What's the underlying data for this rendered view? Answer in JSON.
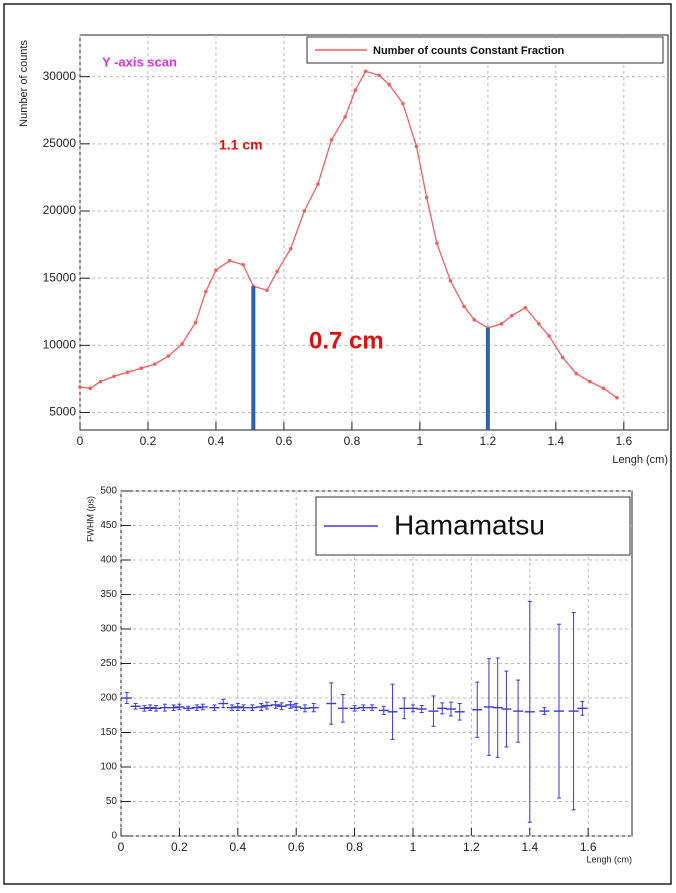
{
  "chart_data": [
    {
      "type": "line",
      "legend": "Number of counts Constant Fraction",
      "ylabel": "Number of counts",
      "xlabel": "Lengh (cm)",
      "annotations": [
        "Y -axis scan",
        "1.1 cm",
        "0.7 cm"
      ],
      "vlines": [
        0.51,
        1.2
      ],
      "vline_color": "#2e62a8",
      "xlim": [
        0,
        1.73
      ],
      "ylim": [
        3700,
        33100
      ],
      "xticks": [
        0,
        0.2,
        0.4,
        0.6,
        0.8,
        1,
        1.2,
        1.4,
        1.6
      ],
      "yticks": [
        5000,
        10000,
        15000,
        20000,
        25000,
        30000
      ],
      "grid": true,
      "series": [
        {
          "name": "Number of counts Constant Fraction",
          "color": "#f06060",
          "x": [
            0,
            0.03,
            0.06,
            0.1,
            0.14,
            0.18,
            0.22,
            0.26,
            0.3,
            0.34,
            0.37,
            0.4,
            0.44,
            0.48,
            0.51,
            0.55,
            0.58,
            0.62,
            0.66,
            0.7,
            0.74,
            0.78,
            0.81,
            0.84,
            0.88,
            0.91,
            0.95,
            0.99,
            1.02,
            1.05,
            1.09,
            1.13,
            1.16,
            1.2,
            1.24,
            1.27,
            1.31,
            1.35,
            1.38,
            1.42,
            1.46,
            1.5,
            1.54,
            1.58
          ],
          "values": [
            6900,
            6800,
            7300,
            7700,
            8000,
            8300,
            8600,
            9200,
            10100,
            11700,
            14000,
            15600,
            16300,
            16000,
            14400,
            14100,
            15500,
            17200,
            20000,
            22000,
            25300,
            27000,
            29000,
            30400,
            30100,
            29400,
            28000,
            24800,
            21000,
            17600,
            14800,
            12900,
            11900,
            11300,
            11600,
            12200,
            12800,
            11600,
            10700,
            9100,
            7900,
            7300,
            6800,
            6100
          ]
        }
      ]
    },
    {
      "type": "errorbar",
      "legend": "Hamamatsu",
      "ylabel": "FWHM (ps)",
      "xlabel": "Lengh (cm)",
      "xlim": [
        0,
        1.75
      ],
      "ylim": [
        0,
        500
      ],
      "xticks": [
        0,
        0.2,
        0.4,
        0.6,
        0.8,
        1,
        1.2,
        1.4,
        1.6
      ],
      "yticks": [
        0,
        50,
        100,
        150,
        200,
        250,
        300,
        350,
        400,
        450,
        500
      ],
      "grid": true,
      "series": [
        {
          "name": "Hamamatsu",
          "color": "#3a3ad8",
          "x": [
            0.02,
            0.05,
            0.08,
            0.1,
            0.12,
            0.15,
            0.18,
            0.2,
            0.23,
            0.26,
            0.28,
            0.32,
            0.35,
            0.38,
            0.4,
            0.42,
            0.45,
            0.48,
            0.5,
            0.53,
            0.55,
            0.58,
            0.6,
            0.63,
            0.66,
            0.72,
            0.76,
            0.8,
            0.83,
            0.86,
            0.9,
            0.93,
            0.97,
            1.0,
            1.03,
            1.07,
            1.1,
            1.13,
            1.16,
            1.22,
            1.26,
            1.29,
            1.32,
            1.36,
            1.4,
            1.45,
            1.5,
            1.55,
            1.58
          ],
          "values": [
            200,
            188,
            185,
            186,
            185,
            186,
            186,
            187,
            185,
            186,
            187,
            186,
            192,
            186,
            187,
            186,
            186,
            187,
            189,
            190,
            188,
            190,
            187,
            185,
            186,
            192,
            185,
            185,
            186,
            186,
            182,
            180,
            185,
            185,
            184,
            181,
            185,
            184,
            180,
            183,
            187,
            186,
            184,
            181,
            180,
            181,
            181,
            181,
            185
          ],
          "errors": [
            8,
            4,
            4,
            4,
            4,
            5,
            4,
            4,
            3,
            4,
            4,
            4,
            6,
            4,
            5,
            4,
            4,
            5,
            5,
            5,
            5,
            5,
            5,
            5,
            6,
            30,
            20,
            4,
            4,
            4,
            6,
            40,
            15,
            5,
            5,
            22,
            8,
            10,
            12,
            40,
            70,
            72,
            55,
            45,
            160,
            5,
            126,
            143,
            10
          ]
        }
      ]
    }
  ]
}
